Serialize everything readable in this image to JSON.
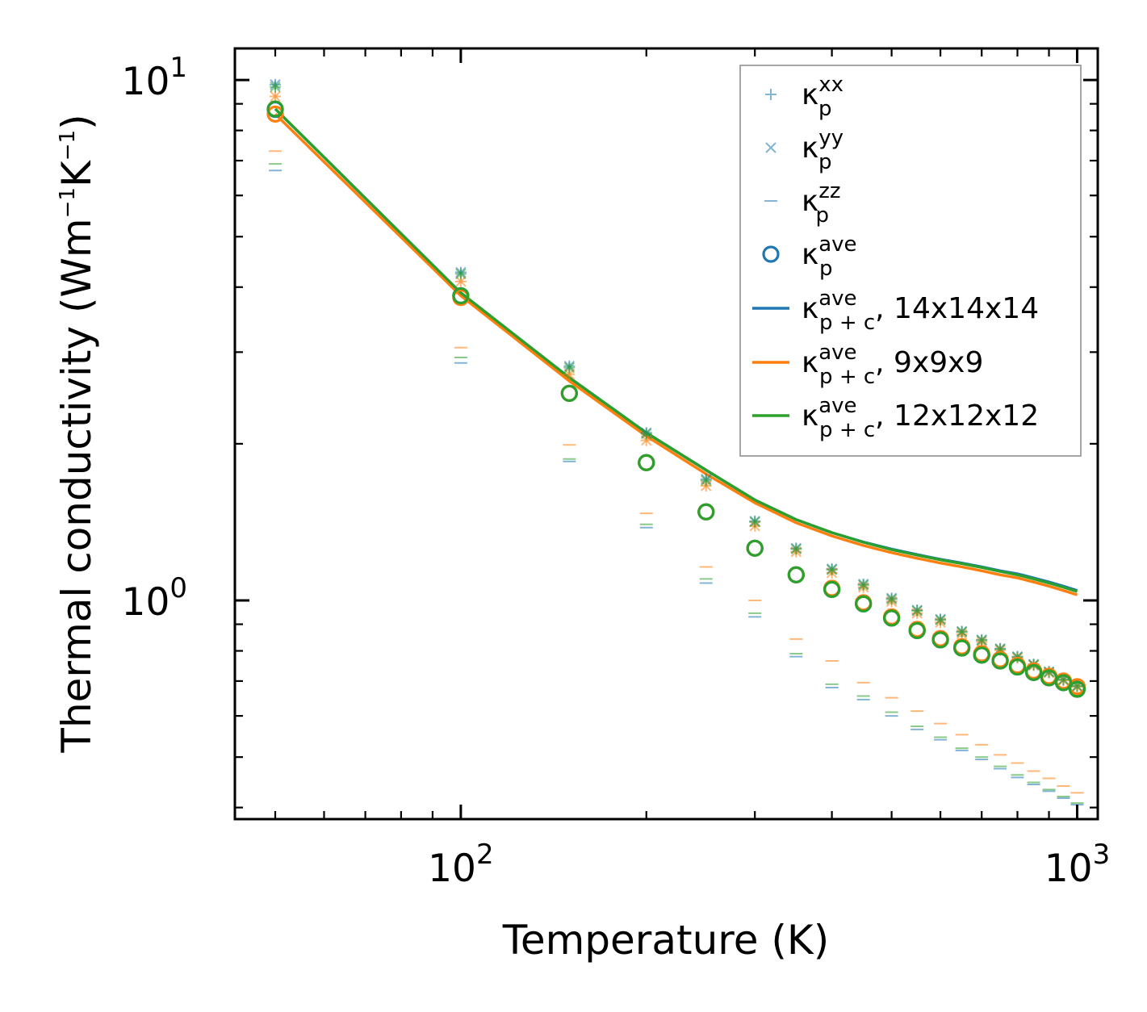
{
  "chart_data": {
    "type": "scatter",
    "xscale": "log",
    "yscale": "log",
    "xlabel": "Temperature (K)",
    "ylabel_main": "Thermal conductivity (Wm",
    "ylabel_sup1": "−1",
    "ylabel_mid": "K",
    "ylabel_sup2": "−1",
    "ylabel_end": ")",
    "xlim": [
      43,
      1080
    ],
    "ylim": [
      0.38,
      11.5
    ],
    "x_ticks": [
      {
        "value": 100,
        "base": "10",
        "exp": "2"
      },
      {
        "value": 1000,
        "base": "10",
        "exp": "3"
      }
    ],
    "y_ticks": [
      {
        "value": 1,
        "base": "10",
        "exp": "0"
      },
      {
        "value": 10,
        "base": "10",
        "exp": "1"
      }
    ],
    "colors": {
      "blue": "#1f77b4",
      "orange": "#ff7f0e",
      "green": "#2ca02c"
    },
    "x": [
      50,
      100,
      150,
      200,
      250,
      300,
      350,
      400,
      450,
      500,
      550,
      600,
      650,
      700,
      750,
      800,
      850,
      900,
      950,
      1000
    ],
    "series": [
      {
        "name": "kappa_p_xx",
        "grid": "14x14x14",
        "color": "#1f77b4",
        "marker": "plus",
        "values": [
          9.8,
          4.27,
          2.82,
          2.1,
          1.71,
          1.42,
          1.26,
          1.15,
          1.075,
          1.01,
          0.958,
          0.92,
          0.872,
          0.84,
          0.808,
          0.78,
          0.754,
          0.73,
          0.705,
          0.685
        ]
      },
      {
        "name": "kappa_p_yy",
        "grid": "14x14x14",
        "color": "#1f77b4",
        "marker": "x",
        "values": [
          9.8,
          4.27,
          2.82,
          2.1,
          1.71,
          1.42,
          1.26,
          1.15,
          1.075,
          1.01,
          0.958,
          0.92,
          0.872,
          0.84,
          0.808,
          0.78,
          0.754,
          0.73,
          0.705,
          0.685
        ]
      },
      {
        "name": "kappa_p_zz",
        "grid": "14x14x14",
        "color": "#1f77b4",
        "marker": "hline",
        "values": [
          6.7,
          2.86,
          1.85,
          1.38,
          1.08,
          0.93,
          0.78,
          0.68,
          0.645,
          0.6,
          0.565,
          0.54,
          0.515,
          0.495,
          0.475,
          0.457,
          0.443,
          0.43,
          0.417,
          0.405
        ]
      },
      {
        "name": "kappa_p_ave",
        "grid": "14x14x14",
        "color": "#1f77b4",
        "marker": "circle",
        "values": [
          8.78,
          3.85,
          2.5,
          1.84,
          1.48,
          1.26,
          1.12,
          1.05,
          0.985,
          0.925,
          0.875,
          0.84,
          0.81,
          0.785,
          0.765,
          0.745,
          0.727,
          0.71,
          0.695,
          0.678
        ]
      },
      {
        "name": "kappa_p_xx",
        "grid": "9x9x9",
        "color": "#ff7f0e",
        "marker": "plus",
        "values": [
          9.3,
          4.1,
          2.72,
          2.03,
          1.66,
          1.39,
          1.24,
          1.13,
          1.06,
          0.995,
          0.945,
          0.907,
          0.862,
          0.832,
          0.802,
          0.775,
          0.75,
          0.726,
          0.702,
          0.682
        ]
      },
      {
        "name": "kappa_p_yy",
        "grid": "9x9x9",
        "color": "#ff7f0e",
        "marker": "x",
        "values": [
          9.3,
          4.1,
          2.72,
          2.03,
          1.66,
          1.39,
          1.24,
          1.13,
          1.06,
          0.995,
          0.945,
          0.907,
          0.862,
          0.832,
          0.802,
          0.775,
          0.75,
          0.726,
          0.702,
          0.682
        ]
      },
      {
        "name": "kappa_p_zz",
        "grid": "9x9x9",
        "color": "#ff7f0e",
        "marker": "hline",
        "values": [
          7.3,
          3.06,
          1.99,
          1.47,
          1.16,
          1.0,
          0.843,
          0.765,
          0.695,
          0.65,
          0.613,
          0.58,
          0.552,
          0.528,
          0.505,
          0.487,
          0.47,
          0.455,
          0.44,
          0.427
        ]
      },
      {
        "name": "kappa_p_ave",
        "grid": "9x9x9",
        "color": "#ff7f0e",
        "marker": "circle",
        "values": [
          8.6,
          3.82,
          2.5,
          1.84,
          1.48,
          1.26,
          1.12,
          1.055,
          0.99,
          0.93,
          0.88,
          0.845,
          0.815,
          0.79,
          0.77,
          0.75,
          0.732,
          0.715,
          0.7,
          0.683
        ]
      },
      {
        "name": "kappa_p_xx",
        "grid": "12x12x12",
        "color": "#2ca02c",
        "marker": "plus",
        "values": [
          9.7,
          4.24,
          2.8,
          2.09,
          1.7,
          1.415,
          1.255,
          1.145,
          1.07,
          1.005,
          0.955,
          0.917,
          0.87,
          0.838,
          0.806,
          0.778,
          0.752,
          0.728,
          0.704,
          0.684
        ]
      },
      {
        "name": "kappa_p_yy",
        "grid": "12x12x12",
        "color": "#2ca02c",
        "marker": "x",
        "values": [
          9.7,
          4.24,
          2.8,
          2.09,
          1.7,
          1.415,
          1.255,
          1.145,
          1.07,
          1.005,
          0.955,
          0.917,
          0.87,
          0.838,
          0.806,
          0.778,
          0.752,
          0.728,
          0.704,
          0.684
        ]
      },
      {
        "name": "kappa_p_zz",
        "grid": "12x12x12",
        "color": "#2ca02c",
        "marker": "hline",
        "values": [
          6.9,
          2.93,
          1.87,
          1.4,
          1.1,
          0.945,
          0.79,
          0.69,
          0.655,
          0.61,
          0.573,
          0.546,
          0.52,
          0.5,
          0.48,
          0.462,
          0.447,
          0.433,
          0.42,
          0.408
        ]
      },
      {
        "name": "kappa_p_ave",
        "grid": "12x12x12",
        "color": "#2ca02c",
        "marker": "circle",
        "values": [
          8.8,
          3.85,
          2.5,
          1.84,
          1.48,
          1.26,
          1.12,
          1.05,
          0.985,
          0.925,
          0.875,
          0.84,
          0.81,
          0.785,
          0.765,
          0.745,
          0.727,
          0.71,
          0.695,
          0.675
        ]
      }
    ],
    "lines": [
      {
        "name": "kappa_p+c_ave, 14x14x14",
        "color": "#1f77b4",
        "values": [
          8.8,
          3.9,
          2.68,
          2.1,
          1.78,
          1.56,
          1.43,
          1.35,
          1.295,
          1.255,
          1.225,
          1.2,
          1.18,
          1.16,
          1.14,
          1.125,
          1.105,
          1.085,
          1.065,
          1.045
        ]
      },
      {
        "name": "kappa_p+c_ave, 9x9x9",
        "color": "#ff7f0e",
        "values": [
          8.6,
          3.85,
          2.64,
          2.07,
          1.75,
          1.54,
          1.41,
          1.33,
          1.275,
          1.235,
          1.205,
          1.18,
          1.16,
          1.14,
          1.12,
          1.105,
          1.085,
          1.065,
          1.045,
          1.025
        ]
      },
      {
        "name": "kappa_p+c_ave, 12x12x12",
        "color": "#2ca02c",
        "values": [
          8.8,
          3.9,
          2.68,
          2.1,
          1.78,
          1.56,
          1.43,
          1.35,
          1.293,
          1.252,
          1.222,
          1.197,
          1.177,
          1.157,
          1.137,
          1.12,
          1.1,
          1.08,
          1.06,
          1.04
        ]
      }
    ],
    "legend": {
      "location": "top-right",
      "entries": [
        {
          "marker": "plus",
          "color": "#1f77b4",
          "sym": "κ",
          "sub": "p",
          "sup": "xx",
          "suffix": ""
        },
        {
          "marker": "x",
          "color": "#1f77b4",
          "sym": "κ",
          "sub": "p",
          "sup": "yy",
          "suffix": ""
        },
        {
          "marker": "hline",
          "color": "#1f77b4",
          "sym": "κ",
          "sub": "p",
          "sup": "zz",
          "suffix": ""
        },
        {
          "marker": "circle",
          "color": "#1f77b4",
          "sym": "κ",
          "sub": "p",
          "sup": "ave",
          "suffix": ""
        },
        {
          "marker": "line",
          "color": "#1f77b4",
          "sym": "κ",
          "sub": "p + c",
          "sup": "ave",
          "suffix": ", 14x14x14"
        },
        {
          "marker": "line",
          "color": "#ff7f0e",
          "sym": "κ",
          "sub": "p + c",
          "sup": "ave",
          "suffix": ", 9x9x9"
        },
        {
          "marker": "line",
          "color": "#2ca02c",
          "sym": "κ",
          "sub": "p + c",
          "sup": "ave",
          "suffix": ", 12x12x12"
        }
      ]
    }
  }
}
